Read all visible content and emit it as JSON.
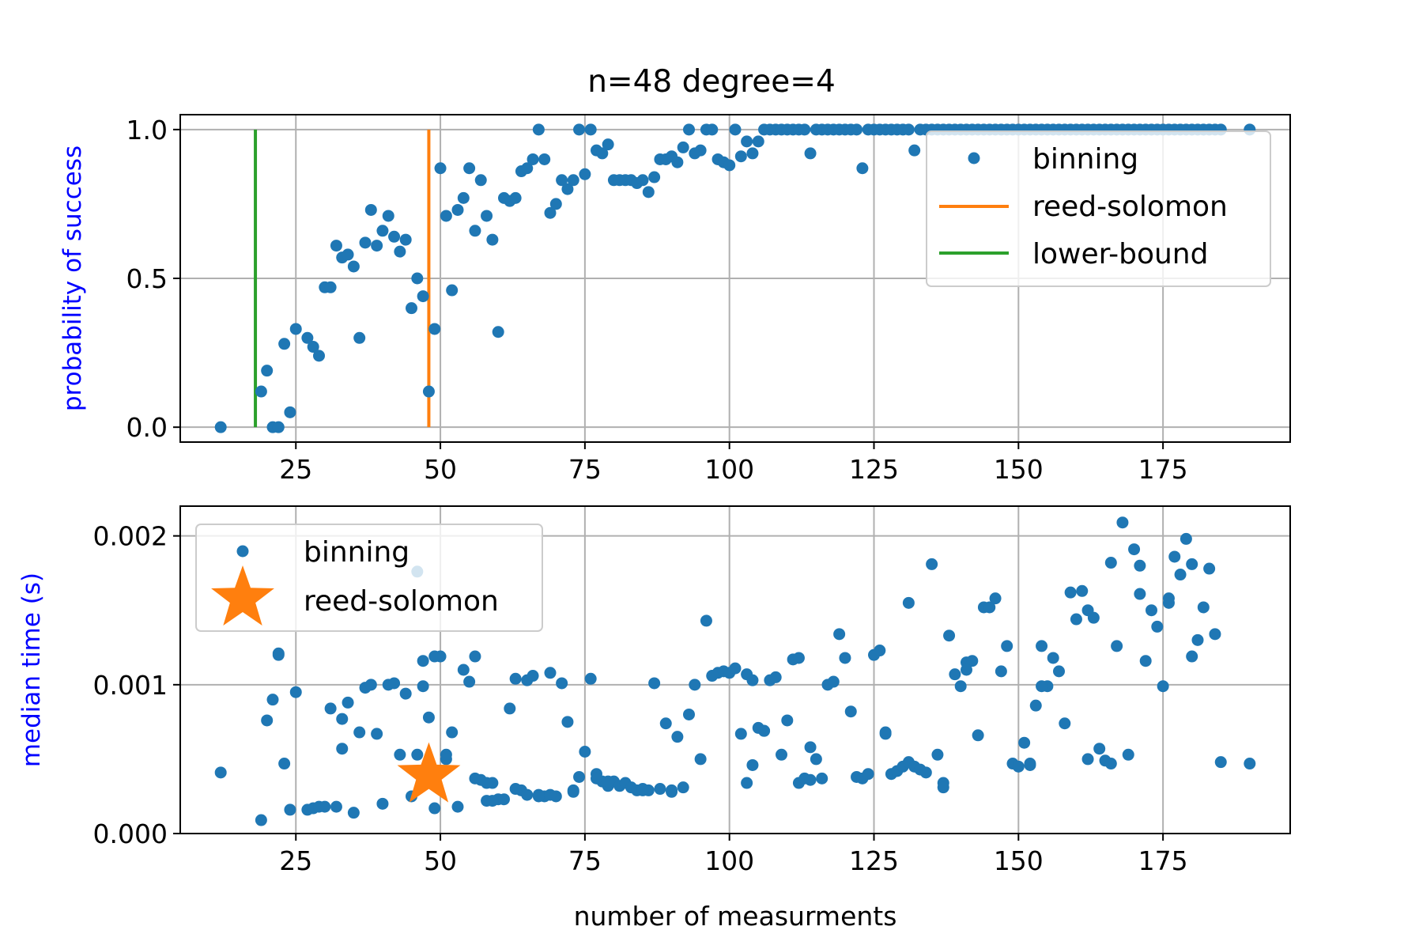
{
  "chart_data": [
    {
      "type": "scatter",
      "title": "n=48 degree=4",
      "xlabel": "",
      "ylabel": "probability of success",
      "ylabel_color": "#0000ff",
      "xlim": [
        5,
        197
      ],
      "ylim": [
        -0.05,
        1.05
      ],
      "xticks": [
        25,
        50,
        75,
        100,
        125,
        150,
        175
      ],
      "yticks": [
        0.0,
        0.5,
        1.0
      ],
      "ytick_labels": [
        "0.0",
        "0.5",
        "1.0"
      ],
      "grid": true,
      "legend_position": "upper-right",
      "series": [
        {
          "name": "binning",
          "kind": "points",
          "color": "#1f77b4",
          "x": [
            12,
            19,
            20,
            21,
            22,
            23,
            24,
            25,
            27,
            28,
            29,
            30,
            31,
            32,
            33,
            34,
            35,
            36,
            37,
            38,
            39,
            40,
            41,
            42,
            43,
            44,
            45,
            46,
            47,
            48,
            49,
            50,
            51,
            52,
            53,
            54,
            55,
            56,
            57,
            58,
            59,
            60,
            61,
            62,
            63,
            64,
            65,
            66,
            67,
            68,
            69,
            70,
            71,
            72,
            73,
            74,
            75,
            76,
            77,
            78,
            79,
            80,
            81,
            82,
            83,
            84,
            85,
            86,
            87,
            88,
            89,
            90,
            91,
            92,
            93,
            94,
            95,
            96,
            97,
            98,
            99,
            100,
            101,
            102,
            103,
            104,
            105,
            106,
            107,
            108,
            109,
            110,
            111,
            112,
            113,
            114,
            115,
            116,
            117,
            118,
            119,
            120,
            121,
            122,
            123,
            124,
            125,
            126,
            127,
            128,
            129,
            130,
            131,
            132,
            133,
            134,
            135,
            136,
            137,
            138,
            139,
            140,
            141,
            142,
            143,
            144,
            145,
            146,
            147,
            148,
            149,
            150,
            151,
            152,
            153,
            154,
            155,
            156,
            157,
            158,
            159,
            160,
            161,
            162,
            163,
            164,
            165,
            166,
            167,
            168,
            169,
            170,
            171,
            172,
            173,
            174,
            175,
            176,
            177,
            178,
            179,
            180,
            181,
            182,
            183,
            184,
            185,
            190
          ],
          "y": [
            0.0,
            0.12,
            0.19,
            0.0,
            0.0,
            0.28,
            0.05,
            0.33,
            0.3,
            0.27,
            0.24,
            0.47,
            0.47,
            0.61,
            0.57,
            0.58,
            0.54,
            0.3,
            0.62,
            0.73,
            0.61,
            0.66,
            0.71,
            0.64,
            0.59,
            0.63,
            0.4,
            0.5,
            0.44,
            0.12,
            0.33,
            0.87,
            0.71,
            0.46,
            0.73,
            0.77,
            0.87,
            0.66,
            0.83,
            0.71,
            0.63,
            0.32,
            0.77,
            0.76,
            0.77,
            0.86,
            0.87,
            0.9,
            1.0,
            0.9,
            0.72,
            0.75,
            0.83,
            0.8,
            0.83,
            1.0,
            0.85,
            1.0,
            0.93,
            0.92,
            0.95,
            0.83,
            0.83,
            0.83,
            0.83,
            0.82,
            0.83,
            0.79,
            0.84,
            0.9,
            0.9,
            0.91,
            0.89,
            0.94,
            1.0,
            0.92,
            0.93,
            1.0,
            1.0,
            0.9,
            0.89,
            0.88,
            1.0,
            0.91,
            0.96,
            0.92,
            0.96,
            1.0,
            1.0,
            1.0,
            1.0,
            1.0,
            1.0,
            1.0,
            1.0,
            0.92,
            1.0,
            1.0,
            1.0,
            1.0,
            1.0,
            1.0,
            1.0,
            1.0,
            0.87,
            1.0,
            1.0,
            1.0,
            1.0,
            1.0,
            1.0,
            1.0,
            1.0,
            0.93,
            1.0,
            1.0,
            1.0,
            1.0,
            1.0,
            1.0,
            1.0,
            1.0,
            1.0,
            1.0,
            1.0,
            1.0,
            1.0,
            1.0,
            1.0,
            1.0,
            1.0,
            1.0,
            1.0,
            1.0,
            1.0,
            1.0,
            1.0,
            1.0,
            1.0,
            1.0,
            1.0,
            1.0,
            1.0,
            1.0,
            1.0,
            1.0,
            1.0,
            1.0,
            1.0,
            1.0,
            1.0,
            1.0,
            1.0,
            1.0,
            1.0,
            1.0,
            1.0,
            1.0,
            1.0,
            1.0,
            1.0,
            1.0,
            1.0,
            1.0,
            1.0,
            1.0,
            1.0,
            1.0
          ]
        },
        {
          "name": "reed-solomon",
          "kind": "vline",
          "color": "#ff7f0e",
          "x": [
            48,
            48
          ],
          "y": [
            0.0,
            1.0
          ]
        },
        {
          "name": "lower-bound",
          "kind": "vline",
          "color": "#2ca02c",
          "x": [
            18,
            18
          ],
          "y": [
            0.0,
            1.0
          ]
        }
      ]
    },
    {
      "type": "scatter",
      "title": "",
      "xlabel": "number of measurments",
      "ylabel": "median time (s)",
      "ylabel_color": "#0000ff",
      "xlim": [
        5,
        197
      ],
      "ylim": [
        0.0,
        0.0022
      ],
      "xticks": [
        25,
        50,
        75,
        100,
        125,
        150,
        175
      ],
      "yticks": [
        0.0,
        0.001,
        0.002
      ],
      "ytick_labels": [
        "0.000",
        "0.001",
        "0.002"
      ],
      "grid": true,
      "legend_position": "upper-left",
      "series": [
        {
          "name": "binning",
          "kind": "points",
          "color": "#1f77b4",
          "x": [
            12,
            19,
            20,
            21,
            22,
            23,
            24,
            25,
            27,
            28,
            29,
            30,
            31,
            32,
            33,
            34,
            35,
            36,
            37,
            38,
            39,
            40,
            41,
            42,
            43,
            44,
            45,
            46,
            47,
            48,
            49,
            50,
            51,
            52,
            53,
            54,
            55,
            56,
            57,
            58,
            59,
            60,
            61,
            62,
            63,
            64,
            65,
            66,
            67,
            68,
            69,
            70,
            71,
            72,
            73,
            74,
            75,
            76,
            77,
            78,
            79,
            80,
            81,
            82,
            83,
            84,
            85,
            86,
            87,
            88,
            89,
            90,
            91,
            92,
            93,
            94,
            95,
            96,
            97,
            98,
            99,
            100,
            101,
            102,
            103,
            104,
            105,
            106,
            107,
            108,
            109,
            110,
            111,
            112,
            113,
            114,
            115,
            116,
            117,
            118,
            119,
            120,
            121,
            122,
            123,
            124,
            125,
            126,
            127,
            128,
            129,
            130,
            131,
            132,
            133,
            134,
            135,
            136,
            137,
            138,
            139,
            140,
            141,
            142,
            143,
            144,
            145,
            146,
            147,
            148,
            149,
            150,
            151,
            152,
            153,
            154,
            155,
            156,
            157,
            158,
            159,
            160,
            161,
            162,
            163,
            164,
            165,
            166,
            167,
            168,
            169,
            170,
            171,
            172,
            173,
            174,
            175,
            176,
            177,
            178,
            179,
            180,
            181,
            182,
            183,
            184,
            185,
            190,
            22,
            33,
            46,
            47,
            49,
            51,
            56,
            58,
            59,
            63,
            65,
            67,
            69,
            73,
            77,
            79,
            85,
            90,
            103,
            104,
            106,
            112,
            114,
            127,
            131,
            137,
            141,
            152,
            154,
            162,
            166,
            171,
            176,
            180
          ],
          "y": [
            0.00041,
            9e-05,
            0.00076,
            0.0009,
            0.0012,
            0.00047,
            0.00016,
            0.00095,
            0.00016,
            0.00017,
            0.00018,
            0.00018,
            0.00084,
            0.00018,
            0.00077,
            0.00088,
            0.00014,
            0.00068,
            0.00098,
            0.001,
            0.00067,
            0.0002,
            0.001,
            0.00101,
            0.00053,
            0.00094,
            0.00025,
            0.00176,
            0.00116,
            0.00078,
            0.00017,
            0.00119,
            0.0005,
            0.00068,
            0.00018,
            0.0011,
            0.00102,
            0.00119,
            0.00036,
            0.00022,
            0.00034,
            0.00023,
            0.00023,
            0.00084,
            0.00104,
            0.00029,
            0.00103,
            0.00106,
            0.00026,
            0.00025,
            0.00108,
            0.00025,
            0.00101,
            0.00075,
            0.00029,
            0.00038,
            0.00055,
            0.00104,
            0.0004,
            0.00035,
            0.00032,
            0.00035,
            0.00032,
            0.00034,
            0.00031,
            0.00029,
            0.0003,
            0.00029,
            0.00101,
            0.0003,
            0.00074,
            0.00029,
            0.00065,
            0.00031,
            0.0008,
            0.001,
            0.0005,
            0.00143,
            0.00106,
            0.00108,
            0.00109,
            0.00108,
            0.00111,
            0.00067,
            0.00034,
            0.00046,
            0.00071,
            0.00069,
            0.00103,
            0.00105,
            0.00053,
            0.00076,
            0.00117,
            0.00034,
            0.00037,
            0.00058,
            0.0005,
            0.00037,
            0.001,
            0.00102,
            0.00134,
            0.00118,
            0.00082,
            0.00038,
            0.00037,
            0.0004,
            0.0012,
            0.00123,
            0.00067,
            0.0004,
            0.00042,
            0.00045,
            0.00048,
            0.00045,
            0.00043,
            0.00041,
            0.00181,
            0.00053,
            0.00034,
            0.00133,
            0.00107,
            0.00099,
            0.00115,
            0.00116,
            0.00066,
            0.00152,
            0.00152,
            0.00158,
            0.00109,
            0.00126,
            0.00047,
            0.00045,
            0.00061,
            0.00046,
            0.00086,
            0.00126,
            0.00099,
            0.00118,
            0.00109,
            0.00074,
            0.00162,
            0.00144,
            0.00163,
            0.0005,
            0.00145,
            0.00057,
            0.00049,
            0.00182,
            0.00126,
            0.00209,
            0.00053,
            0.00191,
            0.0018,
            0.00116,
            0.0015,
            0.00139,
            0.00099,
            0.00155,
            0.00186,
            0.00174,
            0.00198,
            0.00119,
            0.0013,
            0.00152,
            0.00178,
            0.00134,
            0.00048,
            0.00047,
            0.00121,
            0.00057,
            0.00053,
            0.00099,
            0.00119,
            0.00053,
            0.00037,
            0.00034,
            0.00022,
            0.0003,
            0.00026,
            0.00025,
            0.00026,
            0.00028,
            0.00037,
            0.00035,
            0.00029,
            0.00028,
            0.00107,
            0.00103,
            0.00069,
            0.00118,
            0.00036,
            0.00068,
            0.00155,
            0.00031,
            0.0011,
            0.00047,
            0.00099,
            0.0015,
            0.00047,
            0.00161,
            0.00158,
            0.00181
          ]
        },
        {
          "name": "reed-solomon",
          "kind": "star",
          "color": "#ff7f0e",
          "x": [
            48
          ],
          "y": [
            0.00039
          ]
        }
      ]
    }
  ]
}
